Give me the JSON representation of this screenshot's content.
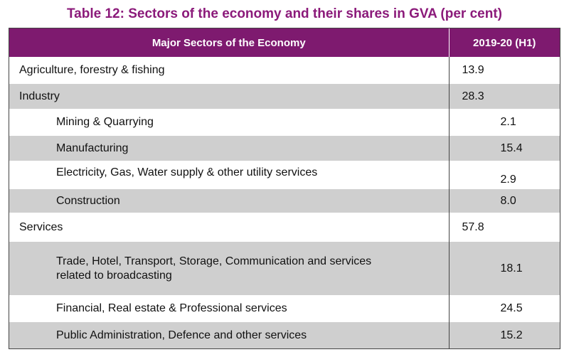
{
  "title": "Table 12: Sectors of the economy and their shares in GVA (per cent)",
  "colors": {
    "header_bg": "#7e1a6f",
    "title": "#8b1a7a",
    "row_shade": "#cfcfcf"
  },
  "table": {
    "headers": [
      "Major Sectors of the Economy",
      "2019-20 (H1)"
    ],
    "rows": [
      {
        "label": "Agriculture, forestry & fishing",
        "value": "13.9"
      },
      {
        "label": "Industry",
        "value": "28.3"
      },
      {
        "label": "Mining & Quarrying",
        "value": "2.1"
      },
      {
        "label": "Manufacturing",
        "value": "15.4"
      },
      {
        "label": "Electricity, Gas, Water supply & other utility services",
        "value": "2.9"
      },
      {
        "label": "Construction",
        "value": "8.0"
      },
      {
        "label": "Services",
        "value": "57.8"
      },
      {
        "label_line1": "Trade, Hotel, Transport, Storage, Communication and services",
        "label_line2": "related to broadcasting",
        "value": "18.1"
      },
      {
        "label": "Financial, Real estate & Professional services",
        "value": "24.5"
      },
      {
        "label": "Public Administration, Defence and other services",
        "value": "15.2"
      }
    ]
  }
}
